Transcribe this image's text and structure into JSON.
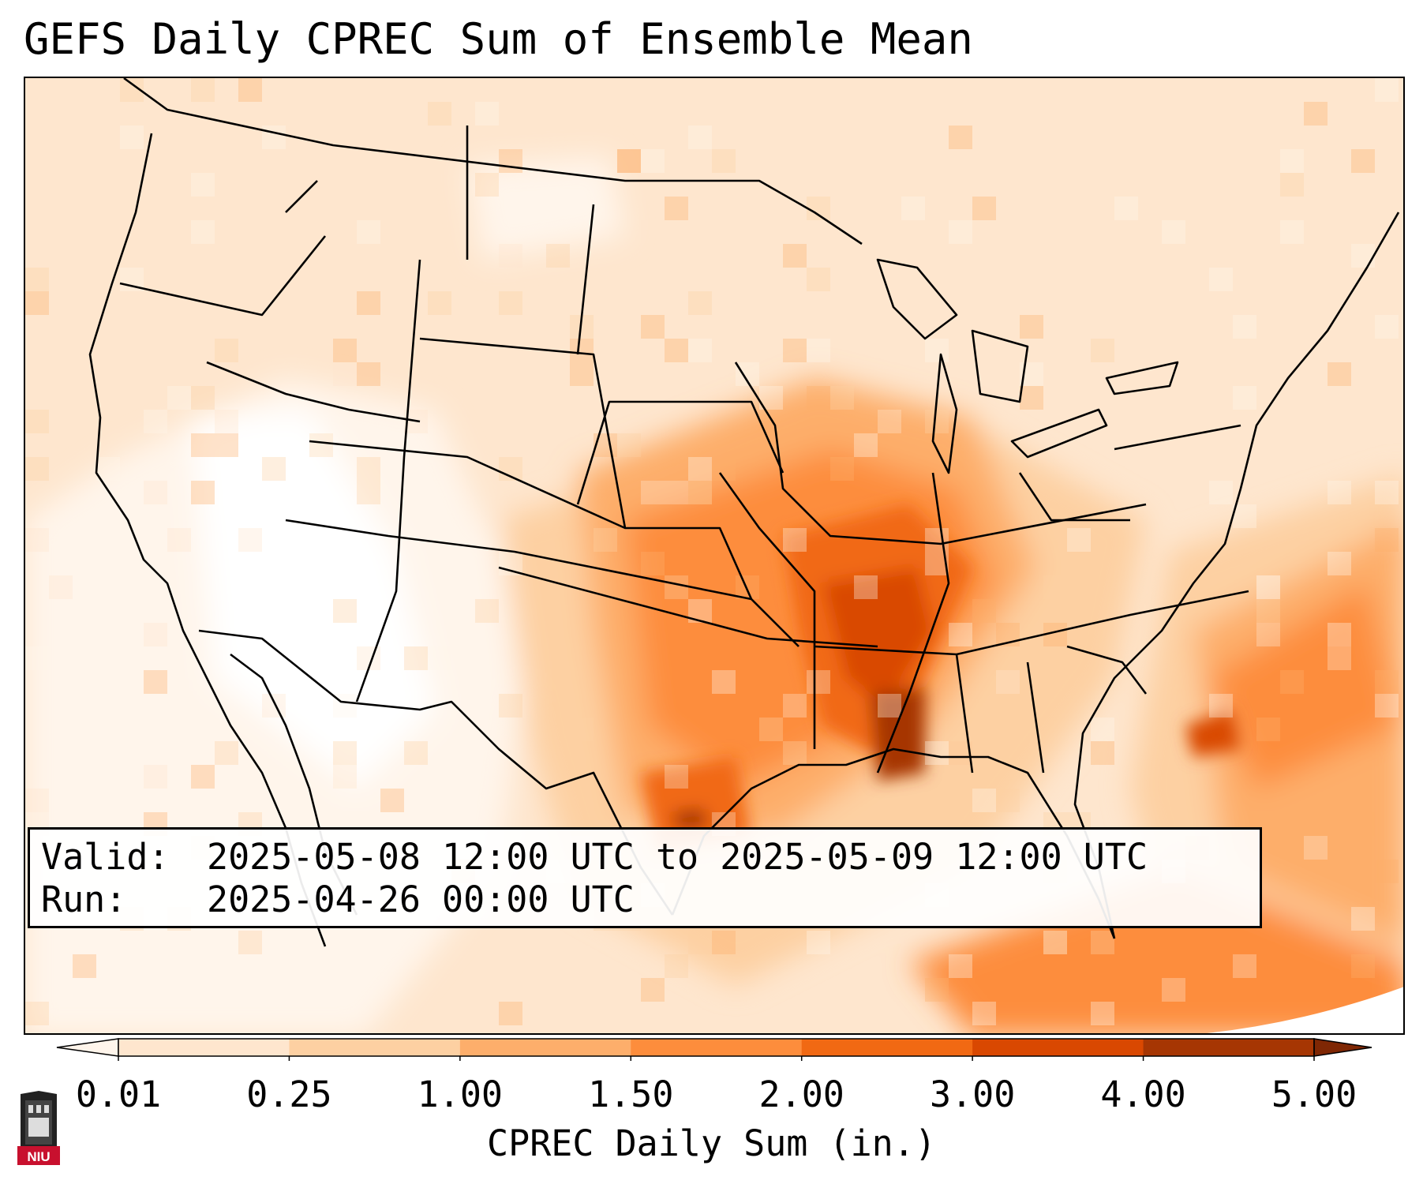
{
  "title": "GEFS Daily CPREC Sum of Ensemble Mean",
  "valid": {
    "label": "Valid:",
    "value": "2025-05-08 12:00 UTC to 2025-05-09 12:00 UTC"
  },
  "run": {
    "label": "Run:",
    "value": "2025-04-26 00:00 UTC"
  },
  "colorbar": {
    "label": "CPREC Daily Sum (in.)",
    "ticks": [
      "0.01",
      "0.25",
      "1.00",
      "1.50",
      "2.00",
      "3.00",
      "4.00",
      "5.00"
    ],
    "colors": [
      "#fff5eb",
      "#fee6ce",
      "#fdd0a2",
      "#fdae6b",
      "#fd8d3c",
      "#f16913",
      "#d94801",
      "#a63603",
      "#7f2704"
    ],
    "extend": "both"
  },
  "logo": {
    "text": "NIU",
    "icon": "niu-castle-logo-icon"
  },
  "map": {
    "projection": "lambert-conic",
    "region": "CONUS",
    "features": [
      "state borders",
      "country borders",
      "coastlines"
    ]
  }
}
